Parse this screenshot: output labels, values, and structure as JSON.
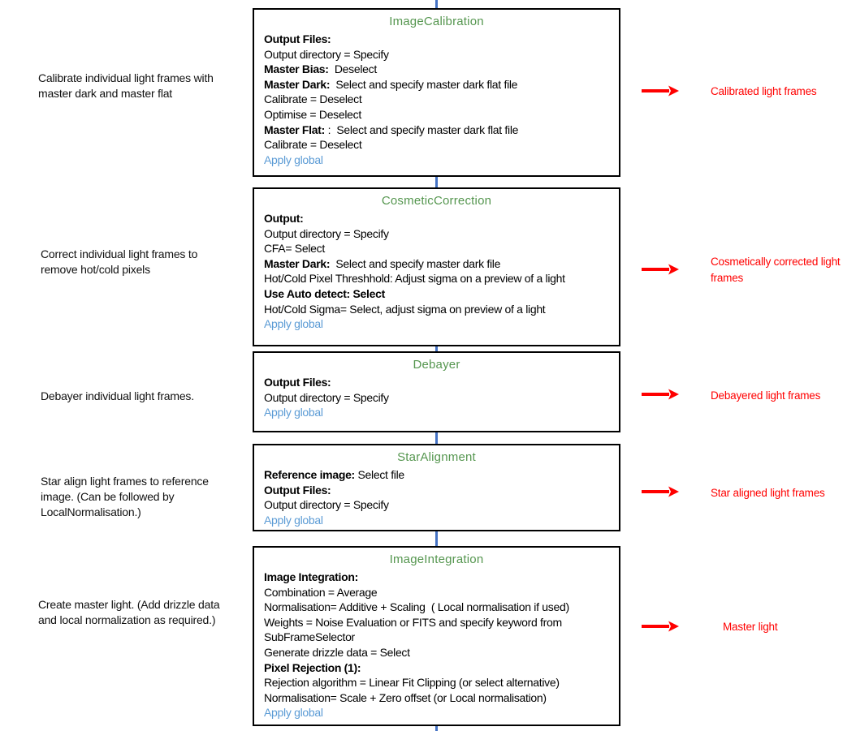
{
  "colors": {
    "title-green": "#55964f",
    "link-blue": "#5b9bd5",
    "connector-blue": "#4472c4",
    "arrow-red": "#ff0000",
    "output-red": "#ff0000",
    "text-black": "#000000",
    "box-border-black": "#000000",
    "background": "#ffffff"
  },
  "icons": {
    "flow_arrow": "red-arrow-right-icon"
  },
  "left_notes": [
    "Calibrate individual light frames with master dark and master flat",
    "Correct individual light frames to remove hot/cold pixels",
    "Debayer individual light frames.",
    "Star align light frames to reference image. (Can be followed  by LocalNormalisation.)",
    "Create master light. (Add drizzle data and local normalization as required.)"
  ],
  "boxes": [
    {
      "title": "ImageCalibration",
      "lines": [
        [
          {
            "t": "Output Files:",
            "b": true
          }
        ],
        [
          {
            "t": "Output directory = Specify"
          }
        ],
        [
          {
            "t": "Master Bias:",
            "b": true
          },
          {
            "t": "  Deselect"
          }
        ],
        [
          {
            "t": "Master Dark:",
            "b": true
          },
          {
            "t": "  Select and specify master dark flat file"
          }
        ],
        [
          {
            "t": "Calibrate = Deselect"
          }
        ],
        [
          {
            "t": "Optimise = Deselect"
          }
        ],
        [
          {
            "t": "Master Flat:",
            "b": true
          },
          {
            "t": " :  Select and specify master dark flat file"
          }
        ],
        [
          {
            "t": "Calibrate = Deselect"
          }
        ],
        [
          {
            "t": "Apply global",
            "link": true
          }
        ]
      ]
    },
    {
      "title": "CosmeticCorrection",
      "lines": [
        [
          {
            "t": "Output:",
            "b": true
          }
        ],
        [
          {
            "t": "Output directory = Specify"
          }
        ],
        [
          {
            "t": "CFA= Select"
          }
        ],
        [
          {
            "t": "Master Dark:",
            "b": true
          },
          {
            "t": "  Select and specify master dark file"
          }
        ],
        [
          {
            "t": "Hot/Cold Pixel Threshhold: Adjust sigma on a preview of a light"
          }
        ],
        [
          {
            "t": "Use Auto detect: Select",
            "b": true
          }
        ],
        [
          {
            "t": "Hot/Cold Sigma= Select, adjust sigma on preview of a light"
          }
        ],
        [
          {
            "t": "Apply global",
            "link": true
          }
        ]
      ]
    },
    {
      "title": "Debayer",
      "lines": [
        [
          {
            "t": "Output Files:",
            "b": true
          }
        ],
        [
          {
            "t": "Output directory = Specify"
          }
        ],
        [
          {
            "t": "Apply global",
            "link": true
          }
        ]
      ]
    },
    {
      "title": "StarAlignment",
      "lines": [
        [
          {
            "t": "Reference image:",
            "b": true
          },
          {
            "t": " Select file"
          }
        ],
        [
          {
            "t": "Output Files:",
            "b": true
          }
        ],
        [
          {
            "t": "Output directory = Specify"
          }
        ],
        [
          {
            "t": "Apply global",
            "link": true
          }
        ]
      ]
    },
    {
      "title": "ImageIntegration",
      "lines": [
        [
          {
            "t": "Image Integration:",
            "b": true
          }
        ],
        [
          {
            "t": "Combination = Average"
          }
        ],
        [
          {
            "t": "Normalisation= Additive + Scaling  ( Local normalisation if used)"
          }
        ],
        [
          {
            "t": "Weights = Noise Evaluation or FITS and specify keyword from"
          }
        ],
        [
          {
            "t": "SubFrameSelector"
          }
        ],
        [
          {
            "t": "Generate drizzle data = Select"
          }
        ],
        [
          {
            "t": "Pixel Rejection (1):",
            "b": true
          }
        ],
        [
          {
            "t": "Rejection algorithm = Linear Fit Clipping (or select alternative)"
          }
        ],
        [
          {
            "t": "Normalisation= Scale + Zero offset (or Local normalisation)"
          }
        ],
        [
          {
            "t": "Apply global",
            "link": true
          }
        ]
      ]
    }
  ],
  "outputs": [
    "Calibrated light frames",
    "Cosmetically corrected light frames",
    "Debayered light frames",
    "Star aligned light frames",
    "Master light"
  ]
}
